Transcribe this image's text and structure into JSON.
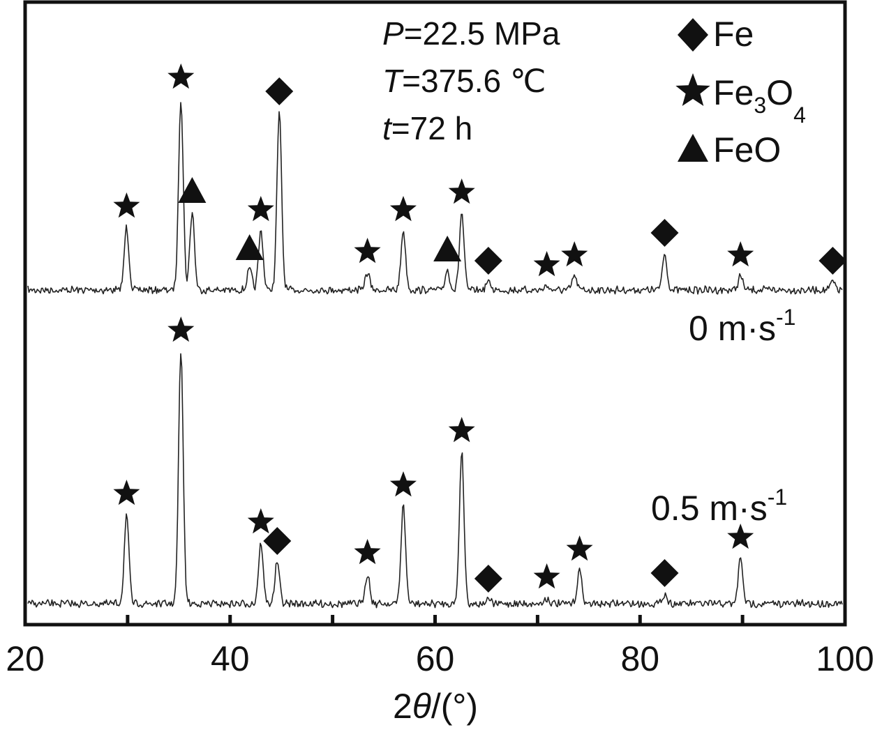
{
  "chart_data": {
    "type": "line",
    "title": "",
    "xlabel": {
      "prefix": "2",
      "symbol": "θ",
      "suffix": "/(°)"
    },
    "ylabel": "",
    "xlim": [
      20,
      100
    ],
    "x_ticks": [
      20,
      30,
      40,
      50,
      60,
      70,
      80,
      90,
      100
    ],
    "x_tick_labels": [
      "20",
      "40",
      "60",
      "80",
      "100"
    ],
    "grid": false,
    "conditions": [
      {
        "symbol": "P",
        "value": "=22.5 MPa"
      },
      {
        "symbol": "T",
        "value": "=375.6 ℃"
      },
      {
        "symbol": "t",
        "value": "=72 h"
      }
    ],
    "legend": {
      "position": "top-right",
      "entries": [
        {
          "marker": "diamond",
          "text": "Fe"
        },
        {
          "marker": "star",
          "text": "Fe",
          "sub1": "3",
          "mid": "O",
          "sub2": "4"
        },
        {
          "marker": "triangle",
          "text": "FeO"
        }
      ]
    },
    "series": [
      {
        "name": "0 m·s",
        "name_sup": "-1",
        "peaks": [
          {
            "x": 29.9,
            "h": 90,
            "phase": "star"
          },
          {
            "x": 35.2,
            "h": 275,
            "phase": "star"
          },
          {
            "x": 36.3,
            "h": 112,
            "phase": "triangle"
          },
          {
            "x": 41.9,
            "h": 30,
            "phase": "triangle"
          },
          {
            "x": 43.0,
            "h": 85,
            "phase": "star"
          },
          {
            "x": 44.8,
            "h": 255,
            "phase": "diamond"
          },
          {
            "x": 53.4,
            "h": 25,
            "phase": "star"
          },
          {
            "x": 56.9,
            "h": 85,
            "phase": "star"
          },
          {
            "x": 61.2,
            "h": 28,
            "phase": "triangle"
          },
          {
            "x": 62.6,
            "h": 110,
            "phase": "star"
          },
          {
            "x": 65.2,
            "h": 12,
            "phase": "diamond"
          },
          {
            "x": 70.9,
            "h": 6,
            "phase": "star"
          },
          {
            "x": 73.6,
            "h": 20,
            "phase": "star"
          },
          {
            "x": 82.4,
            "h": 52,
            "phase": "diamond"
          },
          {
            "x": 89.8,
            "h": 20,
            "phase": "star"
          },
          {
            "x": 98.8,
            "h": 12,
            "phase": "diamond"
          }
        ]
      },
      {
        "name": "0.5 m·s",
        "name_sup": "-1",
        "peaks": [
          {
            "x": 29.9,
            "h": 128,
            "phase": "star"
          },
          {
            "x": 35.2,
            "h": 362,
            "phase": "star"
          },
          {
            "x": 43.0,
            "h": 87,
            "phase": "star"
          },
          {
            "x": 44.6,
            "h": 60,
            "phase": "diamond"
          },
          {
            "x": 53.4,
            "h": 43,
            "phase": "star"
          },
          {
            "x": 56.9,
            "h": 140,
            "phase": "star"
          },
          {
            "x": 62.6,
            "h": 218,
            "phase": "star"
          },
          {
            "x": 65.2,
            "h": 6,
            "phase": "diamond"
          },
          {
            "x": 70.9,
            "h": 8,
            "phase": "star"
          },
          {
            "x": 74.1,
            "h": 48,
            "phase": "star"
          },
          {
            "x": 82.4,
            "h": 14,
            "phase": "diamond"
          },
          {
            "x": 89.8,
            "h": 65,
            "phase": "star"
          }
        ]
      }
    ]
  }
}
